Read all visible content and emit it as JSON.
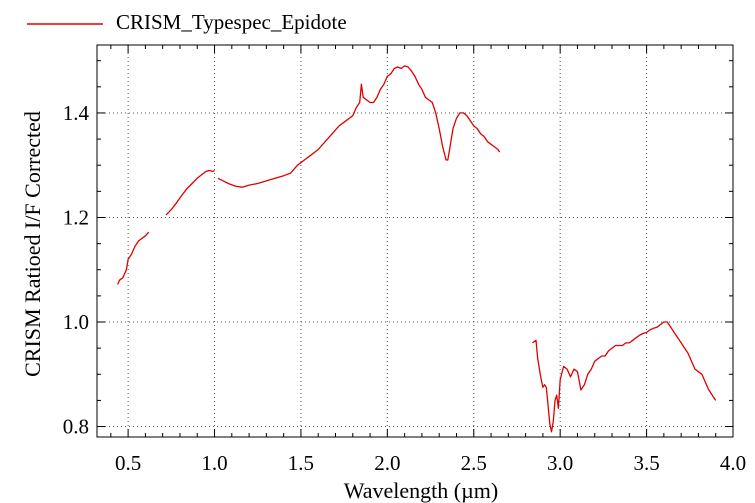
{
  "chart_data": {
    "type": "line",
    "title": "",
    "xlabel": "Wavelength (µm)",
    "ylabel": "CRISM Ratioed I/F Corrected",
    "xlim": [
      0.32,
      4.0
    ],
    "ylim": [
      0.78,
      1.53
    ],
    "xticks": [
      0.5,
      1.0,
      1.5,
      2.0,
      2.5,
      3.0,
      3.5,
      4.0
    ],
    "xtick_labels": [
      "0.5",
      "1.0",
      "1.5",
      "2.0",
      "2.5",
      "3.0",
      "3.5",
      "4.0"
    ],
    "yticks": [
      0.8,
      1.0,
      1.2,
      1.4
    ],
    "ytick_labels": [
      "0.8",
      "1.0",
      "1.2",
      "1.4"
    ],
    "grid": true,
    "legend_position": "top-left",
    "series": [
      {
        "name": "CRISM_Typespec_Epidote",
        "color": "#e00000",
        "segments": [
          [
            [
              0.44,
              1.072
            ],
            [
              0.45,
              1.08
            ],
            [
              0.47,
              1.085
            ],
            [
              0.49,
              1.1
            ],
            [
              0.5,
              1.12
            ],
            [
              0.52,
              1.13
            ],
            [
              0.54,
              1.145
            ],
            [
              0.56,
              1.155
            ],
            [
              0.58,
              1.16
            ],
            [
              0.6,
              1.165
            ],
            [
              0.62,
              1.172
            ]
          ],
          [
            [
              0.72,
              1.205
            ],
            [
              0.75,
              1.215
            ],
            [
              0.78,
              1.228
            ],
            [
              0.81,
              1.242
            ],
            [
              0.84,
              1.255
            ],
            [
              0.87,
              1.265
            ],
            [
              0.9,
              1.275
            ],
            [
              0.93,
              1.283
            ],
            [
              0.95,
              1.288
            ],
            [
              0.97,
              1.29
            ],
            [
              0.99,
              1.288
            ],
            [
              1.0,
              1.29
            ]
          ],
          [
            [
              1.02,
              1.275
            ],
            [
              1.05,
              1.27
            ],
            [
              1.08,
              1.265
            ],
            [
              1.12,
              1.26
            ],
            [
              1.16,
              1.258
            ],
            [
              1.2,
              1.262
            ],
            [
              1.25,
              1.265
            ],
            [
              1.3,
              1.27
            ],
            [
              1.35,
              1.275
            ],
            [
              1.4,
              1.28
            ],
            [
              1.44,
              1.285
            ],
            [
              1.48,
              1.3
            ],
            [
              1.52,
              1.31
            ],
            [
              1.56,
              1.32
            ],
            [
              1.6,
              1.33
            ],
            [
              1.64,
              1.345
            ],
            [
              1.68,
              1.36
            ],
            [
              1.72,
              1.375
            ],
            [
              1.76,
              1.385
            ],
            [
              1.8,
              1.395
            ],
            [
              1.82,
              1.41
            ],
            [
              1.84,
              1.42
            ],
            [
              1.85,
              1.455
            ],
            [
              1.86,
              1.43
            ],
            [
              1.88,
              1.425
            ],
            [
              1.9,
              1.42
            ],
            [
              1.92,
              1.42
            ],
            [
              1.94,
              1.43
            ],
            [
              1.96,
              1.445
            ],
            [
              1.98,
              1.455
            ],
            [
              2.0,
              1.47
            ],
            [
              2.02,
              1.475
            ],
            [
              2.04,
              1.485
            ],
            [
              2.06,
              1.488
            ],
            [
              2.08,
              1.485
            ],
            [
              2.1,
              1.49
            ],
            [
              2.12,
              1.488
            ],
            [
              2.14,
              1.48
            ],
            [
              2.16,
              1.47
            ],
            [
              2.18,
              1.455
            ],
            [
              2.2,
              1.445
            ],
            [
              2.22,
              1.43
            ],
            [
              2.24,
              1.425
            ],
            [
              2.26,
              1.42
            ],
            [
              2.28,
              1.4
            ],
            [
              2.3,
              1.37
            ],
            [
              2.32,
              1.335
            ],
            [
              2.34,
              1.31
            ],
            [
              2.35,
              1.31
            ],
            [
              2.36,
              1.33
            ],
            [
              2.38,
              1.37
            ],
            [
              2.4,
              1.39
            ],
            [
              2.42,
              1.4
            ],
            [
              2.44,
              1.4
            ],
            [
              2.46,
              1.395
            ],
            [
              2.48,
              1.385
            ],
            [
              2.5,
              1.375
            ],
            [
              2.52,
              1.37
            ],
            [
              2.54,
              1.36
            ],
            [
              2.56,
              1.355
            ],
            [
              2.58,
              1.345
            ],
            [
              2.6,
              1.34
            ],
            [
              2.62,
              1.335
            ],
            [
              2.64,
              1.33
            ],
            [
              2.65,
              1.325
            ]
          ],
          [
            [
              2.84,
              0.96
            ],
            [
              2.86,
              0.965
            ],
            [
              2.87,
              0.93
            ],
            [
              2.88,
              0.91
            ],
            [
              2.89,
              0.89
            ],
            [
              2.9,
              0.875
            ],
            [
              2.91,
              0.88
            ],
            [
              2.92,
              0.875
            ],
            [
              2.93,
              0.84
            ],
            [
              2.94,
              0.805
            ],
            [
              2.95,
              0.79
            ],
            [
              2.96,
              0.81
            ],
            [
              2.97,
              0.85
            ],
            [
              2.98,
              0.86
            ],
            [
              2.99,
              0.835
            ],
            [
              3.0,
              0.89
            ],
            [
              3.02,
              0.915
            ],
            [
              3.04,
              0.91
            ],
            [
              3.06,
              0.895
            ],
            [
              3.08,
              0.91
            ],
            [
              3.1,
              0.905
            ],
            [
              3.12,
              0.87
            ],
            [
              3.14,
              0.88
            ],
            [
              3.16,
              0.9
            ],
            [
              3.18,
              0.91
            ],
            [
              3.2,
              0.925
            ],
            [
              3.22,
              0.93
            ],
            [
              3.24,
              0.935
            ],
            [
              3.26,
              0.935
            ],
            [
              3.28,
              0.945
            ],
            [
              3.3,
              0.95
            ],
            [
              3.32,
              0.955
            ],
            [
              3.34,
              0.955
            ],
            [
              3.36,
              0.955
            ],
            [
              3.38,
              0.96
            ],
            [
              3.4,
              0.96
            ],
            [
              3.42,
              0.965
            ],
            [
              3.44,
              0.97
            ],
            [
              3.46,
              0.975
            ],
            [
              3.48,
              0.978
            ],
            [
              3.5,
              0.98
            ],
            [
              3.52,
              0.985
            ],
            [
              3.54,
              0.988
            ],
            [
              3.56,
              0.99
            ],
            [
              3.58,
              0.995
            ],
            [
              3.6,
              1.0
            ],
            [
              3.62,
              1.0
            ],
            [
              3.64,
              0.99
            ],
            [
              3.66,
              0.98
            ],
            [
              3.68,
              0.97
            ],
            [
              3.7,
              0.96
            ],
            [
              3.72,
              0.95
            ],
            [
              3.74,
              0.94
            ],
            [
              3.76,
              0.925
            ],
            [
              3.78,
              0.91
            ],
            [
              3.8,
              0.905
            ],
            [
              3.82,
              0.9
            ],
            [
              3.84,
              0.885
            ],
            [
              3.86,
              0.87
            ],
            [
              3.88,
              0.86
            ],
            [
              3.9,
              0.85
            ]
          ]
        ]
      }
    ]
  }
}
